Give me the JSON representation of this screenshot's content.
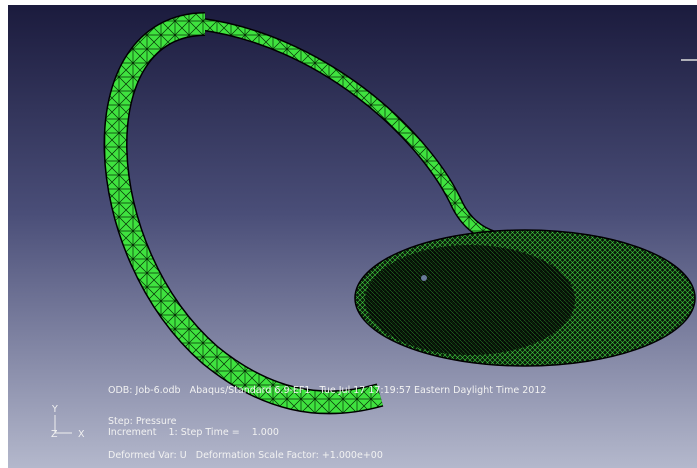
{
  "viewport": {
    "info": {
      "odb": "ODB: Job-6.odb   Abaqus/Standard 6.9-EF1   Tue Jul 17 17:19:57 Eastern Daylight Time 2012",
      "step": "Step: Pressure",
      "increment": "Increment    1: Step Time =    1.000",
      "deformed": "Deformed Var: U   Deformation Scale Factor: +1.000e+00"
    },
    "triad": {
      "y": "Y",
      "z": "Z",
      "x": "X"
    }
  }
}
